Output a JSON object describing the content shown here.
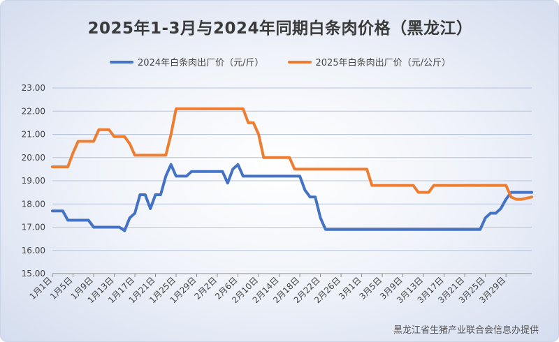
{
  "chart_data": {
    "type": "line",
    "title": "2025年1-3月与2024年同期白条肉价格（黑龙江）",
    "source": "黑龙江省生猪产业联合会信息办提供",
    "ylim": [
      15.0,
      23.0
    ],
    "y_ticks": [
      "15.00",
      "16.00",
      "17.00",
      "18.00",
      "19.00",
      "20.00",
      "21.00",
      "22.00",
      "23.00"
    ],
    "x_ticks": [
      "1月1日",
      "1月5日",
      "1月9日",
      "1月13日",
      "1月17日",
      "1月21日",
      "1月25日",
      "1月29日",
      "2月2日",
      "2月6日",
      "2月10日",
      "2月14日",
      "2月18日",
      "2月22日",
      "2月26日",
      "3月1日",
      "3月5日",
      "3月9日",
      "3月13日",
      "3月17日",
      "3月21日",
      "3月25日",
      "3月29日"
    ],
    "grid": "horizontal",
    "legend_position": "top",
    "series": [
      {
        "name": "2024年白条肉出厂价（元/斤）",
        "color": "#4472C4",
        "points": [
          [
            0,
            17.7
          ],
          [
            2,
            17.7
          ],
          [
            3,
            17.3
          ],
          [
            7,
            17.3
          ],
          [
            8,
            17.0
          ],
          [
            13,
            17.0
          ],
          [
            14,
            16.85
          ],
          [
            15,
            17.4
          ],
          [
            16,
            17.6
          ],
          [
            17,
            18.4
          ],
          [
            18,
            18.4
          ],
          [
            19,
            17.8
          ],
          [
            20,
            18.4
          ],
          [
            21,
            18.4
          ],
          [
            22,
            19.2
          ],
          [
            23,
            19.7
          ],
          [
            24,
            19.2
          ],
          [
            26,
            19.2
          ],
          [
            27,
            19.4
          ],
          [
            33,
            19.4
          ],
          [
            34,
            18.9
          ],
          [
            35,
            19.5
          ],
          [
            36,
            19.7
          ],
          [
            37,
            19.2
          ],
          [
            48,
            19.2
          ],
          [
            49,
            18.6
          ],
          [
            50,
            18.3
          ],
          [
            51,
            18.3
          ],
          [
            52,
            17.4
          ],
          [
            53,
            16.9
          ],
          [
            83,
            16.9
          ],
          [
            84,
            17.4
          ],
          [
            85,
            17.6
          ],
          [
            86,
            17.6
          ],
          [
            87,
            17.8
          ],
          [
            88,
            18.2
          ],
          [
            89,
            18.5
          ],
          [
            93,
            18.5
          ]
        ]
      },
      {
        "name": "2025年白条肉出厂价（元/公斤）",
        "color": "#ED7D31",
        "points": [
          [
            0,
            19.6
          ],
          [
            3,
            19.6
          ],
          [
            4,
            20.2
          ],
          [
            5,
            20.7
          ],
          [
            8,
            20.7
          ],
          [
            9,
            21.2
          ],
          [
            11,
            21.2
          ],
          [
            12,
            20.9
          ],
          [
            14,
            20.9
          ],
          [
            15,
            20.6
          ],
          [
            16,
            20.1
          ],
          [
            22,
            20.1
          ],
          [
            23,
            21.0
          ],
          [
            24,
            22.1
          ],
          [
            37,
            22.1
          ],
          [
            38,
            21.5
          ],
          [
            39,
            21.5
          ],
          [
            40,
            21.0
          ],
          [
            41,
            20.0
          ],
          [
            46,
            20.0
          ],
          [
            47,
            19.5
          ],
          [
            61,
            19.5
          ],
          [
            62,
            18.8
          ],
          [
            70,
            18.8
          ],
          [
            71,
            18.5
          ],
          [
            73,
            18.5
          ],
          [
            74,
            18.8
          ],
          [
            88,
            18.8
          ],
          [
            89,
            18.3
          ],
          [
            90,
            18.2
          ],
          [
            91,
            18.2
          ],
          [
            92,
            18.25
          ],
          [
            93,
            18.3
          ]
        ]
      }
    ]
  }
}
